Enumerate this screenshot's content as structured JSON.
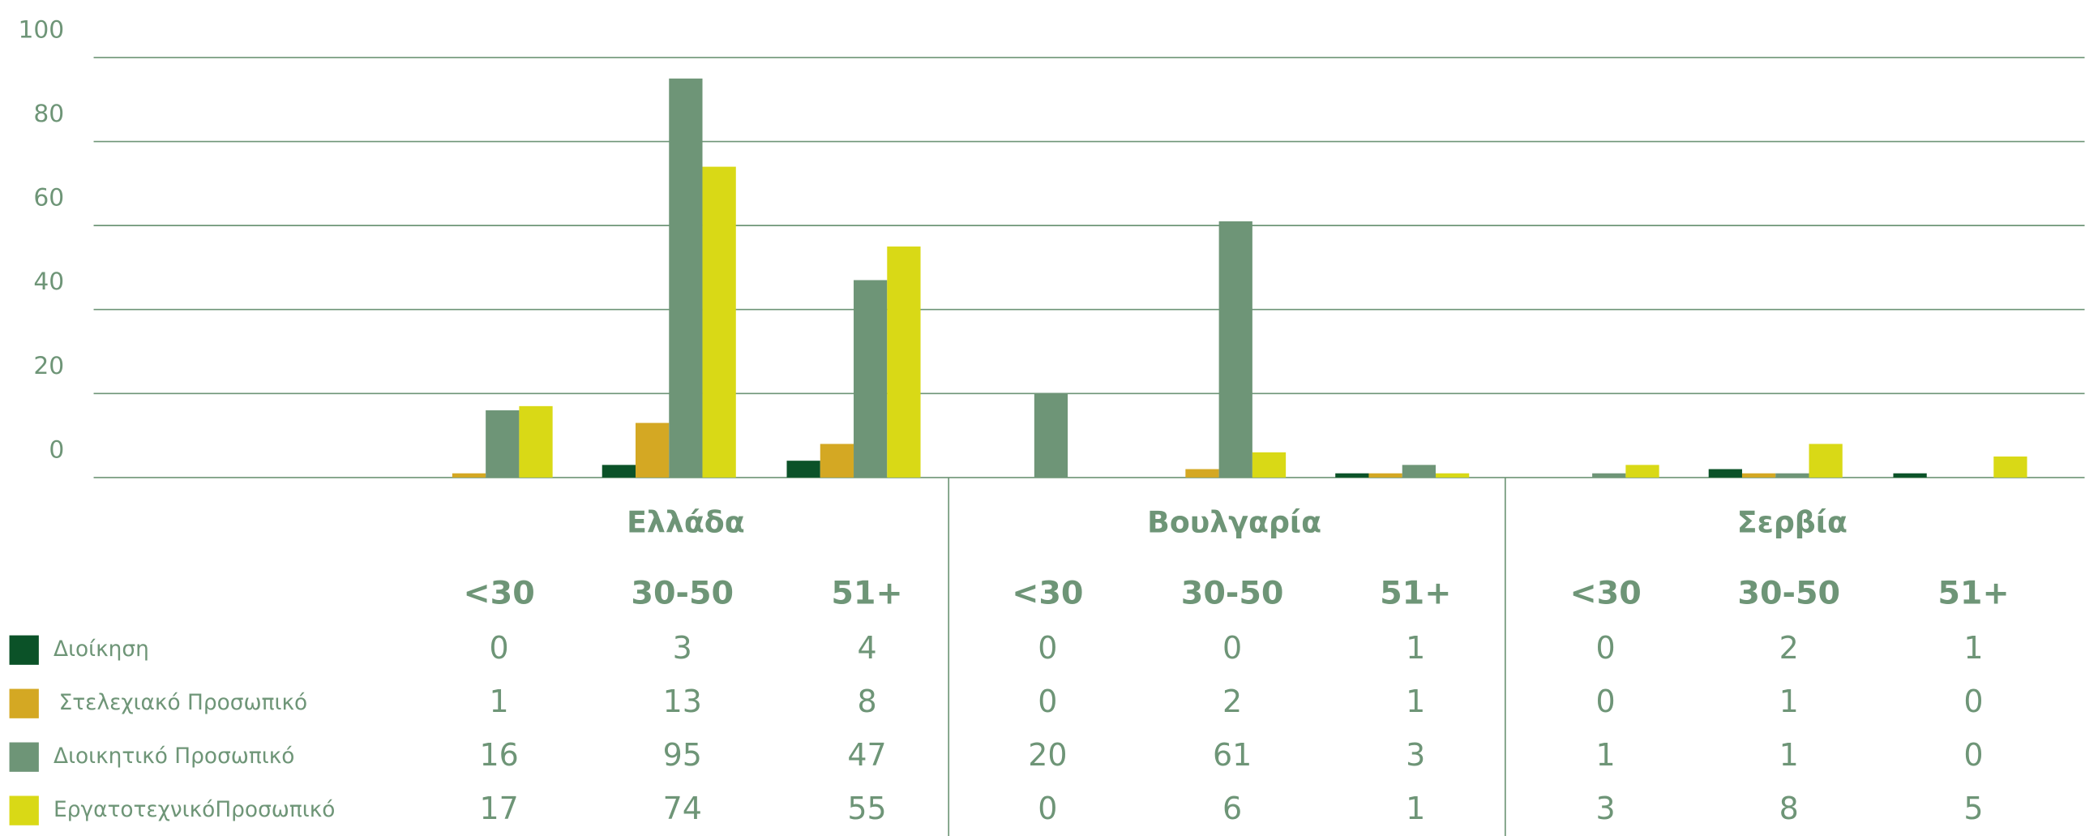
{
  "chart_data": {
    "type": "bar",
    "groups": [
      "Ελλάδα",
      "Βουλγαρία",
      "Σερβία"
    ],
    "categories": [
      "<30",
      "30-50",
      "51+",
      "<30",
      "30-50",
      "51+",
      "<30",
      "30-50",
      "51+"
    ],
    "series": [
      {
        "name": "Διοίκηση",
        "color": "#0b5228",
        "values": [
          0,
          3,
          4,
          0,
          0,
          1,
          0,
          2,
          1
        ]
      },
      {
        "name": "Στελεχιακό Προσωπικό",
        "color": "#d4a823",
        "values": [
          1,
          13,
          8,
          0,
          2,
          1,
          0,
          1,
          0
        ]
      },
      {
        "name": "Διοικητικό Προσωπικό",
        "color": "#6e9577",
        "values": [
          16,
          95,
          47,
          20,
          61,
          3,
          1,
          1,
          0
        ]
      },
      {
        "name": "ΕργατοτεχνικόΠροσωπικό",
        "color": "#d9d916",
        "values": [
          17,
          74,
          55,
          0,
          6,
          1,
          3,
          8,
          5
        ]
      }
    ],
    "ylim": [
      0,
      100
    ],
    "yticks": [
      0,
      20,
      40,
      60,
      80,
      100
    ],
    "grid": true
  }
}
